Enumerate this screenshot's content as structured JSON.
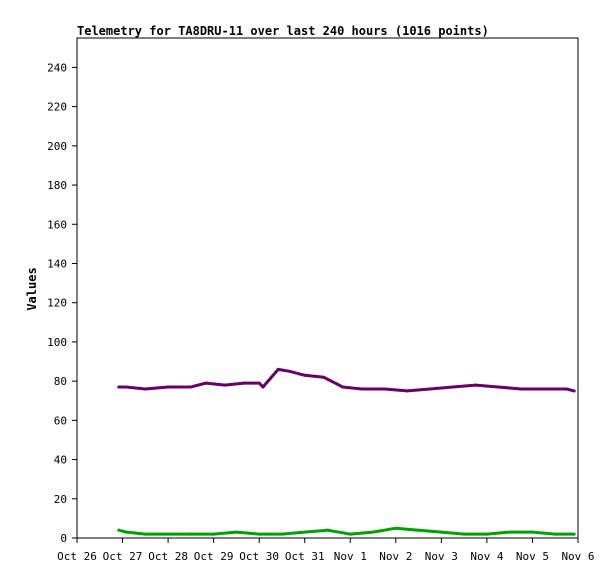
{
  "chart_data": {
    "type": "line",
    "title": "Telemetry for TA8DRU-11 over last 240 hours (1016 points)",
    "xlabel": "",
    "ylabel": "Values",
    "ylim": [
      0,
      255
    ],
    "yticks": [
      0,
      20,
      40,
      60,
      80,
      100,
      120,
      140,
      160,
      180,
      200,
      220,
      240
    ],
    "xlim_days": [
      0,
      11
    ],
    "xtick_labels": [
      "Oct 26",
      "Oct 27",
      "Oct 28",
      "Oct 29",
      "Oct 30",
      "Oct 31",
      "Nov 1",
      "Nov 2",
      "Nov 3",
      "Nov 4",
      "Nov 5",
      "Nov 6"
    ],
    "grid": false,
    "legend": "none",
    "series": [
      {
        "color": "#660066",
        "x": [
          "Oct 26 22:00",
          "Oct 27 02:00",
          "Oct 27 12:00",
          "Oct 28 00:00",
          "Oct 28 12:00",
          "Oct 28 20:00",
          "Oct 29 06:00",
          "Oct 29 16:00",
          "Oct 30 00:00",
          "Oct 30 02:00",
          "Oct 30 10:00",
          "Oct 30 16:00",
          "Oct 31 00:00",
          "Oct 31 10:00",
          "Oct 31 14:00",
          "Oct 31 20:00",
          "Nov 1 06:00",
          "Nov 1 18:00",
          "Nov 2 06:00",
          "Nov 2 18:00",
          "Nov 3 06:00",
          "Nov 3 18:00",
          "Nov 4 06:00",
          "Nov 4 18:00",
          "Nov 5 06:00",
          "Nov 5 18:00",
          "Nov 5 22:00"
        ],
        "values": [
          77,
          77,
          76,
          77,
          77,
          79,
          78,
          79,
          79,
          77,
          86,
          85,
          83,
          82,
          80,
          77,
          76,
          76,
          75,
          76,
          77,
          78,
          77,
          76,
          76,
          76,
          75
        ]
      },
      {
        "color": "#00a000",
        "x": [
          "Oct 26 22:00",
          "Oct 27 02:00",
          "Oct 27 12:00",
          "Oct 28 00:00",
          "Oct 28 12:00",
          "Oct 29 00:00",
          "Oct 29 12:00",
          "Oct 30 00:00",
          "Oct 30 12:00",
          "Oct 31 00:00",
          "Oct 31 12:00",
          "Nov 1 00:00",
          "Nov 1 12:00",
          "Nov 2 00:00",
          "Nov 2 12:00",
          "Nov 3 00:00",
          "Nov 3 12:00",
          "Nov 4 00:00",
          "Nov 4 12:00",
          "Nov 5 00:00",
          "Nov 5 12:00",
          "Nov 5 22:00"
        ],
        "values": [
          4,
          3,
          2,
          2,
          2,
          2,
          3,
          2,
          2,
          3,
          4,
          2,
          3,
          5,
          4,
          3,
          2,
          2,
          3,
          3,
          2,
          2
        ]
      }
    ]
  }
}
